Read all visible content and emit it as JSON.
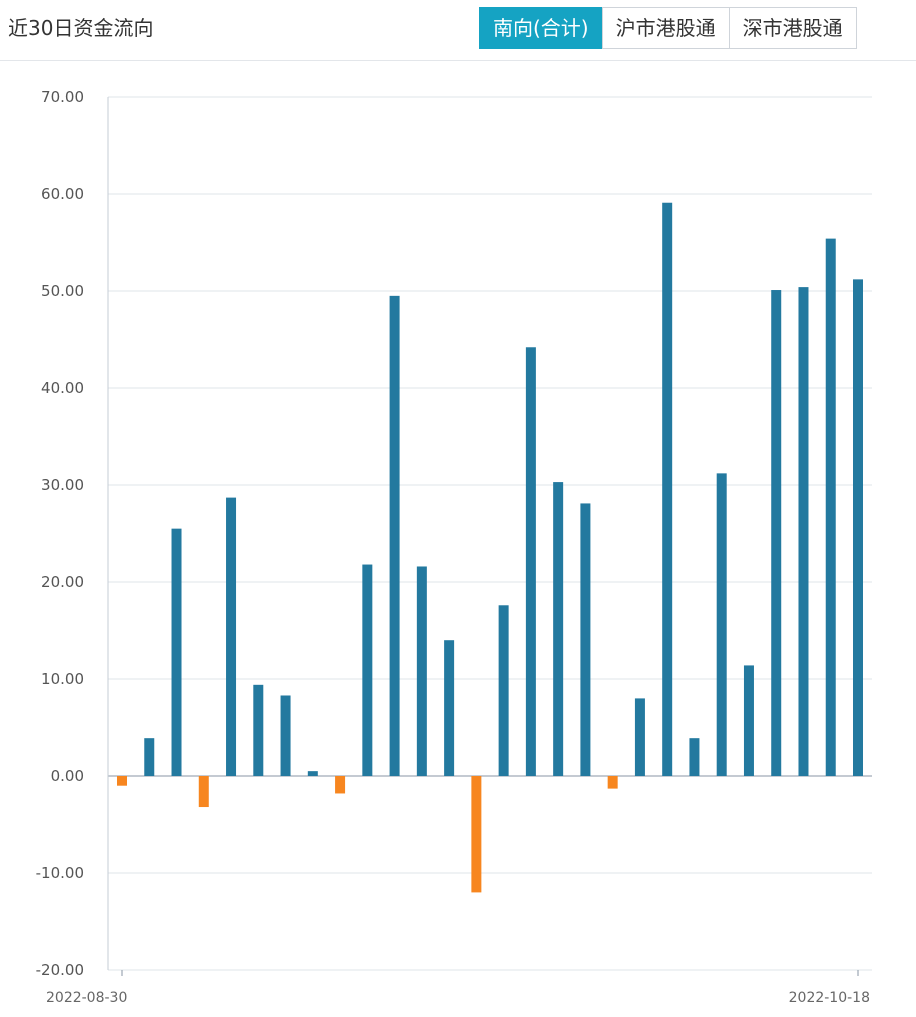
{
  "header": {
    "title": "近30日资金流向",
    "tabs": [
      {
        "label": "南向(合计)",
        "active": true
      },
      {
        "label": "沪市港股通",
        "active": false
      },
      {
        "label": "深市港股通",
        "active": false
      }
    ]
  },
  "colors": {
    "positive": "#23799f",
    "negative": "#f7861f",
    "active_tab": "#15a3c3"
  },
  "chart_data": {
    "type": "bar",
    "title": "",
    "xlabel": "",
    "ylabel": "",
    "ylim": [
      -20,
      70
    ],
    "yticks": [
      "70.00",
      "60.00",
      "50.00",
      "40.00",
      "30.00",
      "20.00",
      "10.00",
      "0.00",
      "-10.00",
      "-20.00"
    ],
    "grid": true,
    "x_first_label": "2022-08-30",
    "x_last_label": "2022-10-18",
    "values": [
      -1.0,
      3.9,
      25.5,
      -3.2,
      28.7,
      9.4,
      8.3,
      0.5,
      -1.8,
      21.8,
      49.5,
      21.6,
      14.0,
      -12.0,
      17.6,
      44.2,
      30.3,
      28.1,
      -1.3,
      8.0,
      59.1,
      3.9,
      31.2,
      11.4,
      50.1,
      50.4,
      55.4,
      51.2
    ]
  }
}
